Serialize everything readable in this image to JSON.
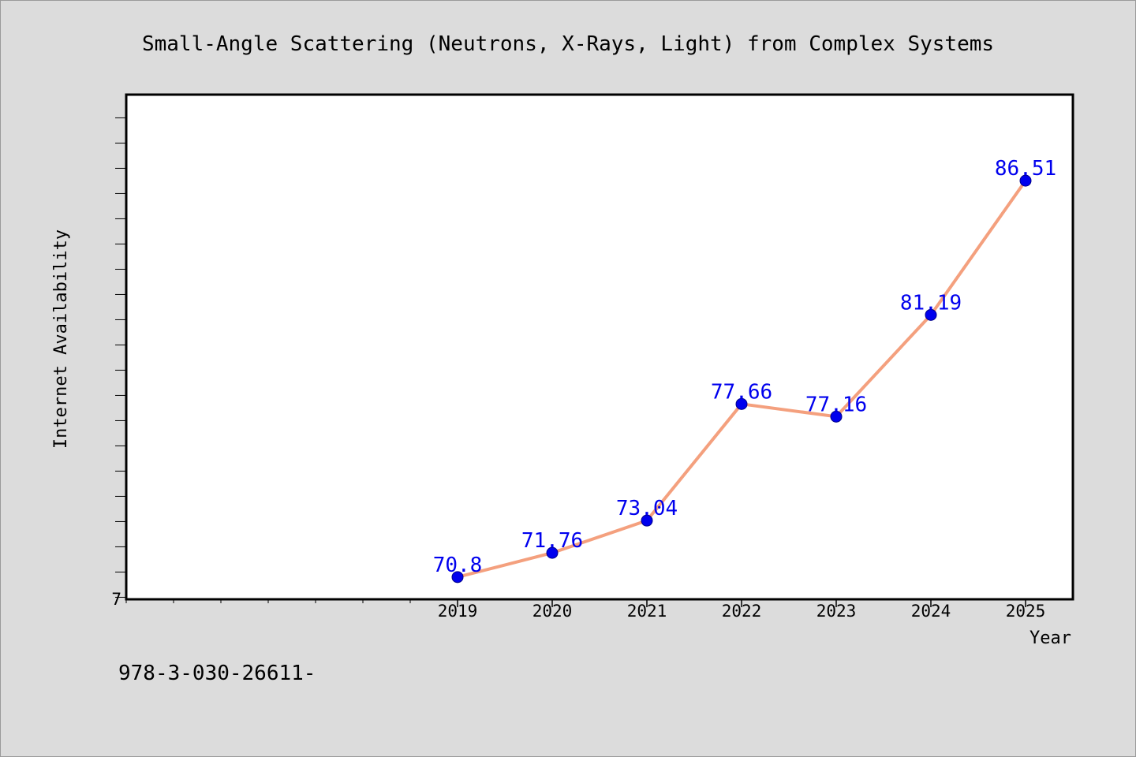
{
  "chart_data": {
    "type": "line",
    "title": "Small-Angle Scattering (Neutrons, X-Rays, Light) from Complex Systems",
    "xlabel": "Year",
    "ylabel": "Internet Availability",
    "x": [
      "2019",
      "2020",
      "2021",
      "2022",
      "2023",
      "2024",
      "2025"
    ],
    "values": [
      70.8,
      71.76,
      73.04,
      77.66,
      77.16,
      81.19,
      86.51
    ],
    "data_labels": [
      "70.8",
      "71.76",
      "73.04",
      "77.66",
      "77.16",
      "81.19",
      "86.51"
    ],
    "y_tick_label": "7",
    "x_display_range": [
      2015.5,
      2025.5
    ],
    "ylim": [
      69.92,
      89.92
    ],
    "grid": false,
    "line_color": "#f4a07e",
    "marker_color": "#0000ee",
    "label_color": "#0000ee"
  },
  "footer_text": "978-3-030-26611-"
}
